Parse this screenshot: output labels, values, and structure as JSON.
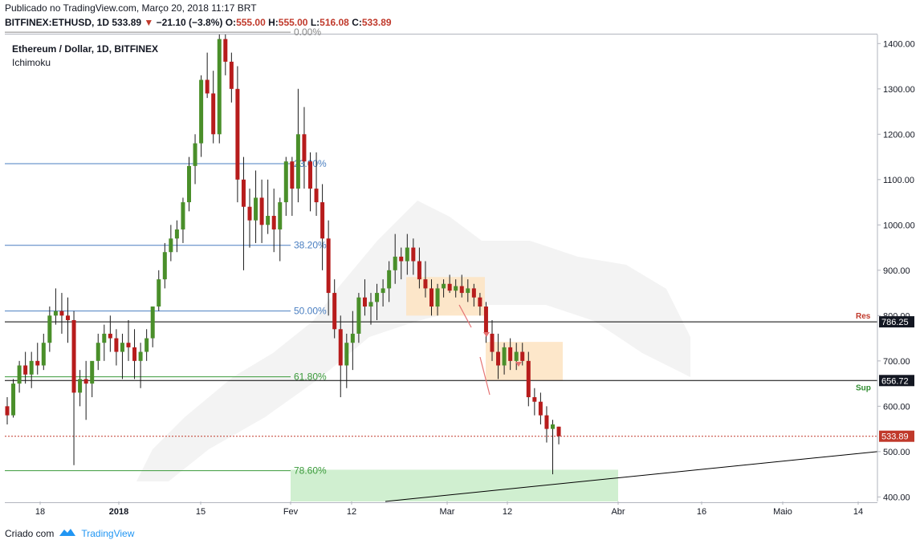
{
  "header": {
    "published": "Publicado no TradingView.com, Março 20, 2018 11:17 BRT",
    "symbol": "BITFINEX:ETHUSD, 1D",
    "last": "533.89",
    "change": "−21.10 (−3.8%)",
    "ohlc_o_label": "O:",
    "ohlc_o": "555.00",
    "ohlc_h_label": "H:",
    "ohlc_h": "555.00",
    "ohlc_l_label": "L:",
    "ohlc_l": "516.08",
    "ohlc_c_label": "C:",
    "ohlc_c": "533.89"
  },
  "legend": {
    "title": "Ethereum / Dollar, 1D, BITFINEX",
    "indicator": "Ichimoku"
  },
  "footer": {
    "created": "Criado com",
    "brand": "TradingView"
  },
  "colors": {
    "up": "#4a8f2a",
    "down": "#b71c1c",
    "fib_blue": "#4a7fc1",
    "fib_green": "#3a9a3a",
    "cloud": "#eeeeee",
    "zone_orange": "#fde3c1",
    "zone_green": "#c8ecc8",
    "price_line": "#c0392b"
  },
  "chart_data": {
    "type": "candlestick",
    "y_axis": {
      "ticks": [
        "1400.00",
        "1300.00",
        "1200.00",
        "1100.00",
        "1000.00",
        "900.00",
        "800.00",
        "700.00",
        "600.00",
        "500.00",
        "400.00"
      ],
      "range": [
        390,
        1420
      ]
    },
    "x_axis": {
      "ticks": [
        "18",
        "2018",
        "15",
        "Fev",
        "12",
        "Mar",
        "12",
        "Abr",
        "16",
        "Maio",
        "14"
      ]
    },
    "fib_levels": [
      {
        "label": "0.00%",
        "price": 1425
      },
      {
        "label": "23.60%",
        "price": 1135
      },
      {
        "label": "38.20%",
        "price": 955
      },
      {
        "label": "50.00%",
        "price": 810
      },
      {
        "label": "61.80%",
        "price": 665
      },
      {
        "label": "78.60%",
        "price": 458
      }
    ],
    "levels": [
      {
        "label": "Res",
        "value": "786.25",
        "price": 786.25
      },
      {
        "label": "Sup",
        "value": "656.72",
        "price": 656.72
      },
      {
        "label": "",
        "value": "533.89",
        "price": 533.89
      }
    ],
    "candles": [
      [
        600,
        620,
        560,
        580
      ],
      [
        580,
        660,
        575,
        650
      ],
      [
        650,
        700,
        630,
        690
      ],
      [
        690,
        720,
        650,
        670
      ],
      [
        670,
        720,
        640,
        700
      ],
      [
        700,
        740,
        670,
        690
      ],
      [
        690,
        760,
        680,
        740
      ],
      [
        740,
        820,
        720,
        800
      ],
      [
        800,
        860,
        780,
        810
      ],
      [
        810,
        850,
        760,
        800
      ],
      [
        800,
        840,
        740,
        790
      ],
      [
        790,
        810,
        470,
        630
      ],
      [
        630,
        680,
        600,
        660
      ],
      [
        660,
        700,
        570,
        650
      ],
      [
        650,
        690,
        620,
        700
      ],
      [
        700,
        760,
        680,
        740
      ],
      [
        740,
        780,
        700,
        760
      ],
      [
        760,
        800,
        720,
        750
      ],
      [
        750,
        770,
        690,
        720
      ],
      [
        720,
        760,
        660,
        740
      ],
      [
        740,
        790,
        700,
        730
      ],
      [
        730,
        770,
        660,
        700
      ],
      [
        700,
        740,
        640,
        720
      ],
      [
        720,
        770,
        700,
        750
      ],
      [
        750,
        820,
        730,
        820
      ],
      [
        820,
        900,
        810,
        880
      ],
      [
        880,
        960,
        860,
        940
      ],
      [
        940,
        1000,
        920,
        970
      ],
      [
        970,
        1010,
        940,
        990
      ],
      [
        990,
        1060,
        960,
        1050
      ],
      [
        1050,
        1150,
        1030,
        1130
      ],
      [
        1130,
        1200,
        1090,
        1180
      ],
      [
        1180,
        1330,
        1150,
        1320
      ],
      [
        1320,
        1380,
        1280,
        1290
      ],
      [
        1290,
        1340,
        1180,
        1200
      ],
      [
        1200,
        1420,
        1180,
        1410
      ],
      [
        1410,
        1420,
        1330,
        1360
      ],
      [
        1360,
        1380,
        1270,
        1300
      ],
      [
        1300,
        1350,
        1050,
        1100
      ],
      [
        1100,
        1150,
        900,
        1040
      ],
      [
        1040,
        1080,
        950,
        1010
      ],
      [
        1010,
        1120,
        960,
        1060
      ],
      [
        1060,
        1100,
        960,
        1000
      ],
      [
        1000,
        1100,
        980,
        1020
      ],
      [
        1020,
        1080,
        940,
        990
      ],
      [
        990,
        1060,
        920,
        1050
      ],
      [
        1050,
        1150,
        1020,
        1140
      ],
      [
        1140,
        1150,
        1020,
        1080
      ],
      [
        1080,
        1300,
        1050,
        1200
      ],
      [
        1200,
        1260,
        1080,
        1140
      ],
      [
        1140,
        1160,
        1030,
        1080
      ],
      [
        1080,
        1160,
        1020,
        1050
      ],
      [
        1050,
        1090,
        900,
        970
      ],
      [
        970,
        1010,
        800,
        850
      ],
      [
        850,
        880,
        750,
        770
      ],
      [
        770,
        800,
        620,
        690
      ],
      [
        690,
        760,
        640,
        740
      ],
      [
        740,
        810,
        680,
        760
      ],
      [
        760,
        850,
        740,
        840
      ],
      [
        840,
        880,
        800,
        820
      ],
      [
        820,
        850,
        780,
        830
      ],
      [
        830,
        870,
        790,
        850
      ],
      [
        850,
        880,
        820,
        860
      ],
      [
        860,
        920,
        830,
        900
      ],
      [
        900,
        980,
        870,
        930
      ],
      [
        930,
        950,
        880,
        920
      ],
      [
        920,
        980,
        890,
        950
      ],
      [
        950,
        970,
        890,
        920
      ],
      [
        920,
        950,
        860,
        880
      ],
      [
        880,
        920,
        840,
        860
      ],
      [
        860,
        880,
        800,
        820
      ],
      [
        820,
        870,
        800,
        860
      ],
      [
        860,
        880,
        840,
        870
      ],
      [
        870,
        890,
        850,
        855
      ],
      [
        855,
        880,
        840,
        865
      ],
      [
        865,
        890,
        840,
        850
      ],
      [
        850,
        880,
        830,
        860
      ],
      [
        860,
        870,
        820,
        840
      ],
      [
        840,
        850,
        800,
        820
      ],
      [
        820,
        830,
        740,
        760
      ],
      [
        760,
        790,
        700,
        720
      ],
      [
        720,
        760,
        660,
        690
      ],
      [
        690,
        740,
        670,
        730
      ],
      [
        730,
        750,
        680,
        700
      ],
      [
        700,
        740,
        680,
        720
      ],
      [
        720,
        740,
        690,
        700
      ],
      [
        700,
        720,
        600,
        620
      ],
      [
        620,
        640,
        580,
        610
      ],
      [
        610,
        630,
        560,
        580
      ],
      [
        580,
        600,
        520,
        550
      ],
      [
        550,
        570,
        450,
        560
      ],
      [
        555,
        555,
        516,
        534
      ]
    ]
  }
}
